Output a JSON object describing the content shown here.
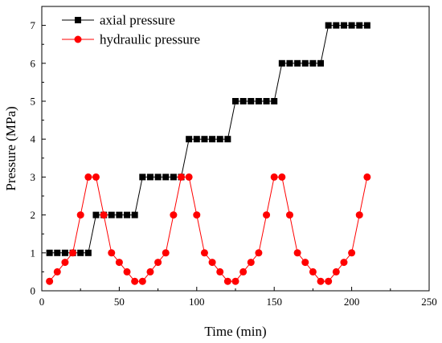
{
  "chart_data": {
    "type": "line",
    "title": "",
    "xlabel": "Time (min)",
    "ylabel": "Pressure (MPa)",
    "xlim": [
      0,
      250
    ],
    "ylim": [
      0,
      7.5
    ],
    "xticks": [
      0,
      50,
      100,
      150,
      200,
      250
    ],
    "yticks": [
      0,
      1,
      2,
      3,
      4,
      5,
      6,
      7
    ],
    "grid": false,
    "legend_position": "top-left",
    "series": [
      {
        "name": "axial pressure",
        "color": "#000000",
        "marker": "square",
        "x": [
          5,
          10,
          15,
          20,
          25,
          30,
          35,
          40,
          45,
          50,
          55,
          60,
          65,
          70,
          75,
          80,
          85,
          90,
          95,
          100,
          105,
          110,
          115,
          120,
          125,
          130,
          135,
          140,
          145,
          150,
          155,
          160,
          165,
          170,
          175,
          180,
          185,
          190,
          195,
          200,
          205,
          210
        ],
        "y": [
          1,
          1,
          1,
          1,
          1,
          1,
          2,
          2,
          2,
          2,
          2,
          2,
          3,
          3,
          3,
          3,
          3,
          3,
          4,
          4,
          4,
          4,
          4,
          4,
          5,
          5,
          5,
          5,
          5,
          5,
          6,
          6,
          6,
          6,
          6,
          6,
          7,
          7,
          7,
          7,
          7,
          7
        ]
      },
      {
        "name": "hydraulic pressure",
        "color": "#ff0000",
        "marker": "circle",
        "x": [
          5,
          10,
          15,
          20,
          25,
          30,
          35,
          40,
          45,
          50,
          55,
          60,
          65,
          70,
          75,
          80,
          85,
          90,
          95,
          100,
          105,
          110,
          115,
          120,
          125,
          130,
          135,
          140,
          145,
          150,
          155,
          160,
          165,
          170,
          175,
          180,
          185,
          190,
          195,
          200,
          205,
          210
        ],
        "y": [
          0.25,
          0.5,
          0.75,
          1,
          2,
          3,
          3,
          2,
          1,
          0.75,
          0.5,
          0.25,
          0.25,
          0.5,
          0.75,
          1,
          2,
          3,
          3,
          2,
          1,
          0.75,
          0.5,
          0.25,
          0.25,
          0.5,
          0.75,
          1,
          2,
          3,
          3,
          2,
          1,
          0.75,
          0.5,
          0.25,
          0.25,
          0.5,
          0.75,
          1,
          2,
          3
        ]
      }
    ]
  }
}
